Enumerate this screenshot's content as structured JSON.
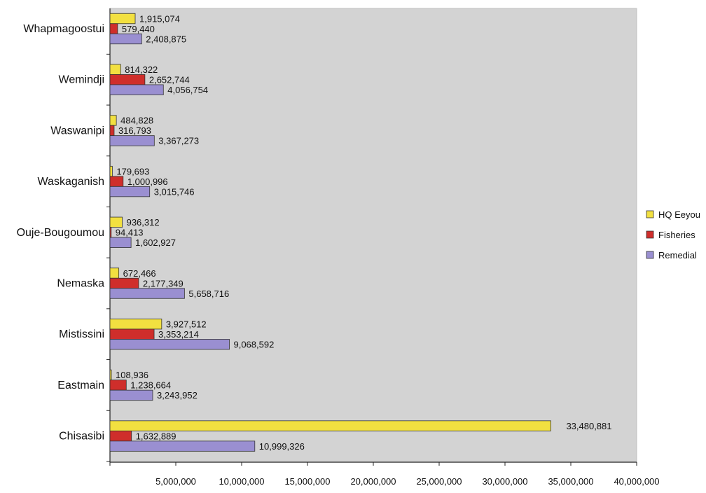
{
  "chart_data": {
    "type": "bar",
    "orientation": "horizontal",
    "categories": [
      "Whapmagoostui",
      "Wemindji",
      "Waswanipi",
      "Waskaganish",
      "Ouje-Bougoumou",
      "Nemaska",
      "Mistissini",
      "Eastmain",
      "Chisasibi"
    ],
    "series": [
      {
        "name": "HQ Eeyou",
        "color": "#f2e040",
        "values": [
          1915074,
          814322,
          484828,
          179693,
          936312,
          672466,
          3927512,
          108936,
          33480881
        ],
        "labels": [
          "1,915,074",
          "814,322",
          "484,828",
          "179,693",
          "936,312",
          "672,466",
          "3,927,512",
          "108,936",
          "33,480,881"
        ]
      },
      {
        "name": "Fisheries",
        "color": "#cf2e2b",
        "values": [
          579440,
          2652744,
          316793,
          1000996,
          94413,
          2177349,
          3353214,
          1238664,
          1632889
        ],
        "labels": [
          "579,440",
          "2,652,744",
          "316,793",
          "1,000,996",
          "94,413",
          "2,177,349",
          "3,353,214",
          "1,238,664",
          "1,632,889"
        ]
      },
      {
        "name": "Remedial",
        "color": "#9a8fd1",
        "values": [
          2408875,
          4056754,
          3367273,
          3015746,
          1602927,
          5658716,
          9068592,
          3243952,
          10999326
        ],
        "labels": [
          "2,408,875",
          "4,056,754",
          "3,367,273",
          "3,015,746",
          "1,602,927",
          "5,658,716",
          "9,068,592",
          "3,243,952",
          "10,999,326"
        ]
      }
    ],
    "xlim": [
      0,
      40000000
    ],
    "xticks": [
      0,
      5000000,
      10000000,
      15000000,
      20000000,
      25000000,
      30000000,
      35000000,
      40000000
    ],
    "xtick_labels": [
      "",
      "5,000,000",
      "10,000,000",
      "15,000,000",
      "20,000,000",
      "25,000,000",
      "30,000,000",
      "35,000,000",
      "40,000,000"
    ],
    "title": "",
    "xlabel": "",
    "ylabel": "",
    "grid": false,
    "legend_position": "right",
    "plot_background": "#d3d3d3"
  }
}
